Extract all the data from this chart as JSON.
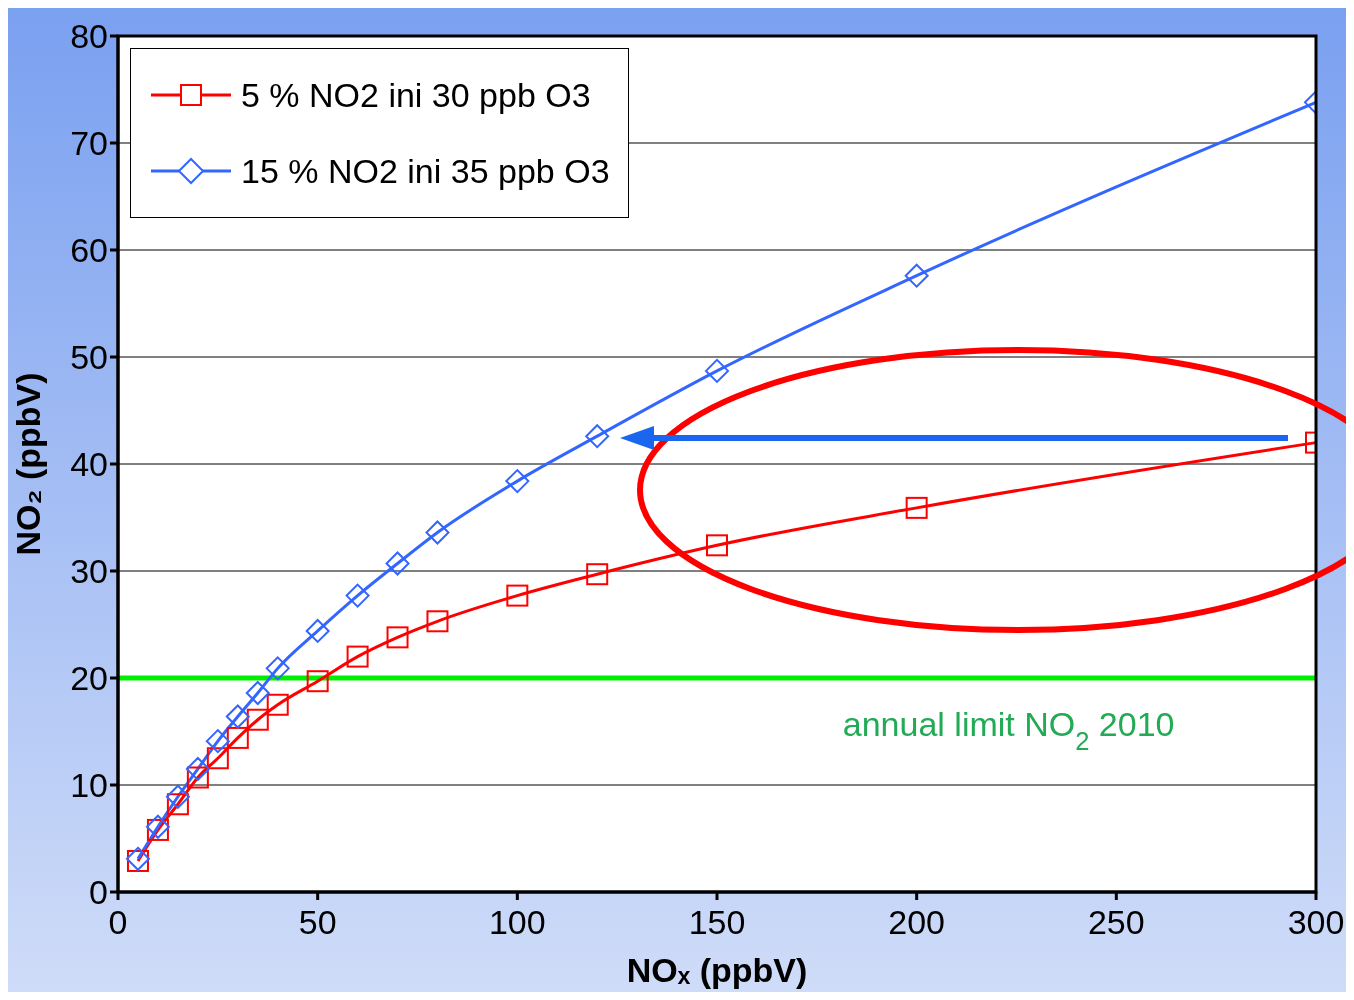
{
  "chart_data": {
    "type": "line",
    "xlabel": "NOₓ (ppbV)",
    "ylabel": "NO₂ (ppbV)",
    "xlim": [
      0,
      300
    ],
    "xticks": [
      0,
      50,
      100,
      150,
      200,
      250,
      300
    ],
    "ylim": [
      0,
      80
    ],
    "yticks": [
      0,
      10,
      20,
      30,
      40,
      50,
      60,
      70,
      80
    ],
    "grid": "y",
    "legend": "top left",
    "line_style": "solid",
    "x": [
      5,
      10,
      15,
      20,
      25,
      30,
      35,
      40,
      50,
      60,
      70,
      80,
      100,
      120,
      150,
      200,
      300
    ],
    "series": [
      {
        "name": "5 % NO2 ini 30 ppb O3",
        "color": "#ff0000",
        "marker": "square",
        "values": [
          2.9,
          5.8,
          8.2,
          10.7,
          12.5,
          14.4,
          16.1,
          17.5,
          19.7,
          22,
          23.8,
          25.3,
          27.7,
          29.7,
          32.4,
          35.9,
          42
        ]
      },
      {
        "name": "15 % NO2 ini 35 ppb O3",
        "color": "#3366ff",
        "marker": "diamond",
        "values": [
          3.1,
          6.1,
          8.9,
          11.5,
          14.1,
          16.4,
          18.6,
          20.9,
          24.4,
          27.7,
          30.7,
          33.6,
          38.4,
          42.6,
          48.7,
          57.6,
          73.8
        ]
      }
    ],
    "ref_lines": [
      {
        "axis": "y",
        "value": 20,
        "label": "annual limit NO$_{2}$ 2010",
        "color": "#00ee00"
      }
    ]
  }
}
